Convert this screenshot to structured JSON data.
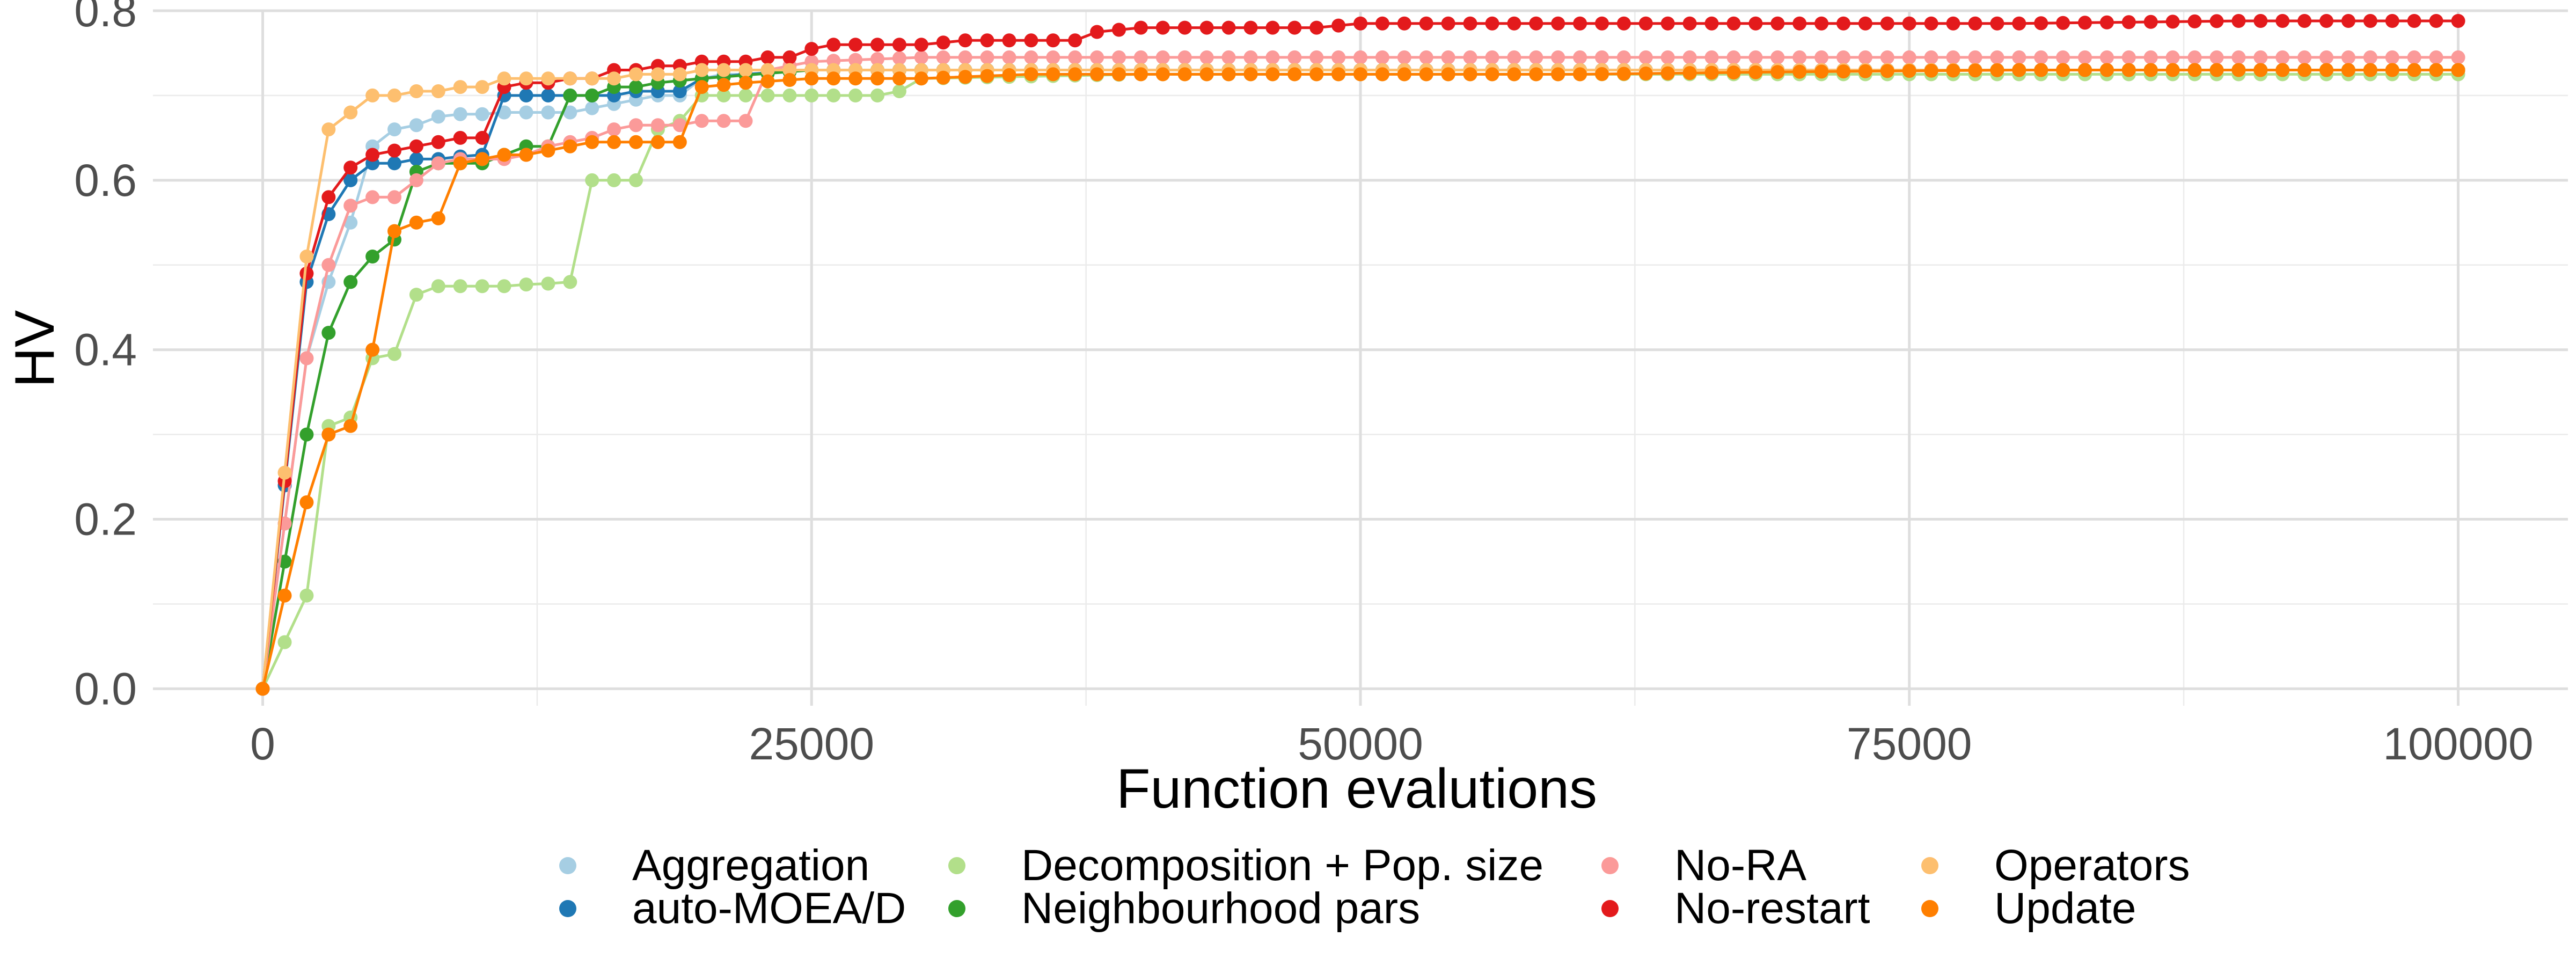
{
  "chart_data": {
    "type": "line",
    "xlabel": "Function evalutions",
    "ylabel": "HV",
    "xlim": [
      -5000,
      105000
    ],
    "ylim": [
      -0.02,
      0.8
    ],
    "x_ticks": [
      0,
      25000,
      50000,
      75000,
      100000
    ],
    "x_tick_labels": [
      "0",
      "25000",
      "50000",
      "75000",
      "100000"
    ],
    "y_ticks": [
      0.0,
      0.2,
      0.4,
      0.6,
      0.8
    ],
    "y_tick_labels": [
      "0.0",
      "0.2",
      "0.4",
      "0.6",
      "0.8"
    ],
    "grid": true,
    "legend_position": "bottom",
    "series": [
      {
        "name": "Aggregation",
        "color": "#a6cee3",
        "points": [
          [
            0,
            0
          ],
          [
            2000,
            0.39
          ],
          [
            3000,
            0.48
          ],
          [
            4000,
            0.55
          ],
          [
            5000,
            0.64
          ],
          [
            6000,
            0.66
          ],
          [
            7000,
            0.665
          ],
          [
            8000,
            0.675
          ],
          [
            9000,
            0.678
          ],
          [
            10000,
            0.678
          ],
          [
            11000,
            0.68
          ],
          [
            12000,
            0.68
          ],
          [
            13000,
            0.68
          ],
          [
            14000,
            0.68
          ],
          [
            15000,
            0.685
          ],
          [
            16000,
            0.69
          ],
          [
            17000,
            0.695
          ],
          [
            18000,
            0.7
          ],
          [
            19000,
            0.7
          ],
          [
            20000,
            0.72
          ],
          [
            21000,
            0.725
          ],
          [
            22000,
            0.725
          ],
          [
            25000,
            0.73
          ],
          [
            30000,
            0.73
          ],
          [
            40000,
            0.73
          ],
          [
            50000,
            0.73
          ],
          [
            60000,
            0.73
          ],
          [
            70000,
            0.73
          ],
          [
            80000,
            0.73
          ],
          [
            90000,
            0.73
          ],
          [
            100000,
            0.73
          ]
        ]
      },
      {
        "name": "auto-MOEA/D",
        "color": "#1f78b4",
        "points": [
          [
            0,
            0
          ],
          [
            2000,
            0.48
          ],
          [
            3000,
            0.56
          ],
          [
            4000,
            0.6
          ],
          [
            5000,
            0.62
          ],
          [
            6000,
            0.62
          ],
          [
            7000,
            0.625
          ],
          [
            8000,
            0.625
          ],
          [
            9000,
            0.628
          ],
          [
            10000,
            0.63
          ],
          [
            11000,
            0.7
          ],
          [
            12000,
            0.7
          ],
          [
            13000,
            0.7
          ],
          [
            14000,
            0.7
          ],
          [
            15000,
            0.7
          ],
          [
            16000,
            0.7
          ],
          [
            17000,
            0.705
          ],
          [
            18000,
            0.705
          ],
          [
            19000,
            0.705
          ],
          [
            20000,
            0.72
          ],
          [
            22000,
            0.725
          ],
          [
            25000,
            0.73
          ],
          [
            30000,
            0.73
          ],
          [
            40000,
            0.73
          ],
          [
            50000,
            0.73
          ],
          [
            60000,
            0.73
          ],
          [
            70000,
            0.73
          ],
          [
            80000,
            0.73
          ],
          [
            90000,
            0.73
          ],
          [
            100000,
            0.73
          ]
        ]
      },
      {
        "name": "Decomposition + Pop. size",
        "color": "#b2df8a",
        "points": [
          [
            0,
            0
          ],
          [
            2000,
            0.11
          ],
          [
            3000,
            0.31
          ],
          [
            4000,
            0.32
          ],
          [
            5000,
            0.39
          ],
          [
            6000,
            0.395
          ],
          [
            7000,
            0.465
          ],
          [
            8000,
            0.475
          ],
          [
            9000,
            0.475
          ],
          [
            10000,
            0.475
          ],
          [
            11000,
            0.475
          ],
          [
            12000,
            0.477
          ],
          [
            13000,
            0.478
          ],
          [
            14000,
            0.48
          ],
          [
            15000,
            0.6
          ],
          [
            16000,
            0.6
          ],
          [
            17000,
            0.6
          ],
          [
            18000,
            0.66
          ],
          [
            19000,
            0.67
          ],
          [
            20000,
            0.7
          ],
          [
            22000,
            0.7
          ],
          [
            24000,
            0.7
          ],
          [
            26000,
            0.7
          ],
          [
            28000,
            0.7
          ],
          [
            29000,
            0.705
          ],
          [
            30000,
            0.72
          ],
          [
            40000,
            0.725
          ],
          [
            50000,
            0.725
          ],
          [
            60000,
            0.725
          ],
          [
            70000,
            0.725
          ],
          [
            80000,
            0.725
          ],
          [
            90000,
            0.725
          ],
          [
            100000,
            0.725
          ]
        ]
      },
      {
        "name": "Neighbourhood pars",
        "color": "#33a02c",
        "points": [
          [
            0,
            0
          ],
          [
            2000,
            0.3
          ],
          [
            3000,
            0.42
          ],
          [
            4000,
            0.48
          ],
          [
            5000,
            0.51
          ],
          [
            6000,
            0.53
          ],
          [
            7000,
            0.61
          ],
          [
            8000,
            0.62
          ],
          [
            9000,
            0.62
          ],
          [
            10000,
            0.62
          ],
          [
            11000,
            0.63
          ],
          [
            12000,
            0.64
          ],
          [
            13000,
            0.64
          ],
          [
            14000,
            0.7
          ],
          [
            15000,
            0.7
          ],
          [
            16000,
            0.71
          ],
          [
            17000,
            0.71
          ],
          [
            18000,
            0.715
          ],
          [
            20000,
            0.72
          ],
          [
            25000,
            0.73
          ],
          [
            30000,
            0.73
          ],
          [
            40000,
            0.73
          ],
          [
            50000,
            0.73
          ],
          [
            60000,
            0.73
          ],
          [
            70000,
            0.73
          ],
          [
            80000,
            0.73
          ],
          [
            90000,
            0.73
          ],
          [
            100000,
            0.73
          ]
        ]
      },
      {
        "name": "No-RA",
        "color": "#fb9a99",
        "points": [
          [
            0,
            0
          ],
          [
            2000,
            0.39
          ],
          [
            3000,
            0.5
          ],
          [
            4000,
            0.57
          ],
          [
            5000,
            0.58
          ],
          [
            6000,
            0.58
          ],
          [
            7000,
            0.6
          ],
          [
            8000,
            0.62
          ],
          [
            9000,
            0.625
          ],
          [
            10000,
            0.625
          ],
          [
            11000,
            0.625
          ],
          [
            12000,
            0.63
          ],
          [
            13000,
            0.64
          ],
          [
            14000,
            0.645
          ],
          [
            15000,
            0.65
          ],
          [
            16000,
            0.66
          ],
          [
            17000,
            0.665
          ],
          [
            18000,
            0.665
          ],
          [
            19000,
            0.665
          ],
          [
            20000,
            0.67
          ],
          [
            21000,
            0.67
          ],
          [
            22000,
            0.67
          ],
          [
            23000,
            0.73
          ],
          [
            25000,
            0.74
          ],
          [
            30000,
            0.745
          ],
          [
            35000,
            0.745
          ],
          [
            40000,
            0.745
          ],
          [
            50000,
            0.745
          ],
          [
            60000,
            0.745
          ],
          [
            70000,
            0.745
          ],
          [
            80000,
            0.745
          ],
          [
            90000,
            0.745
          ],
          [
            100000,
            0.745
          ]
        ]
      },
      {
        "name": "No-restart",
        "color": "#e31a1c",
        "points": [
          [
            0,
            0
          ],
          [
            2000,
            0.49
          ],
          [
            3000,
            0.58
          ],
          [
            4000,
            0.615
          ],
          [
            5000,
            0.63
          ],
          [
            6000,
            0.635
          ],
          [
            7000,
            0.64
          ],
          [
            8000,
            0.645
          ],
          [
            9000,
            0.65
          ],
          [
            10000,
            0.65
          ],
          [
            11000,
            0.71
          ],
          [
            12000,
            0.715
          ],
          [
            13000,
            0.715
          ],
          [
            14000,
            0.72
          ],
          [
            15000,
            0.72
          ],
          [
            16000,
            0.73
          ],
          [
            17000,
            0.73
          ],
          [
            18000,
            0.735
          ],
          [
            19000,
            0.735
          ],
          [
            20000,
            0.74
          ],
          [
            21000,
            0.74
          ],
          [
            22000,
            0.74
          ],
          [
            23000,
            0.745
          ],
          [
            24000,
            0.745
          ],
          [
            25000,
            0.755
          ],
          [
            26000,
            0.76
          ],
          [
            27000,
            0.76
          ],
          [
            28000,
            0.76
          ],
          [
            30000,
            0.76
          ],
          [
            32000,
            0.765
          ],
          [
            34000,
            0.765
          ],
          [
            36000,
            0.765
          ],
          [
            37000,
            0.765
          ],
          [
            38000,
            0.775
          ],
          [
            40000,
            0.78
          ],
          [
            45000,
            0.78
          ],
          [
            48000,
            0.78
          ],
          [
            50000,
            0.785
          ],
          [
            55000,
            0.785
          ],
          [
            60000,
            0.785
          ],
          [
            70000,
            0.785
          ],
          [
            80000,
            0.785
          ],
          [
            90000,
            0.788
          ],
          [
            100000,
            0.788
          ]
        ]
      },
      {
        "name": "Operators",
        "color": "#fdbf6f",
        "points": [
          [
            0,
            0
          ],
          [
            2000,
            0.51
          ],
          [
            3000,
            0.66
          ],
          [
            4000,
            0.68
          ],
          [
            5000,
            0.7
          ],
          [
            6000,
            0.7
          ],
          [
            7000,
            0.705
          ],
          [
            8000,
            0.705
          ],
          [
            9000,
            0.71
          ],
          [
            10000,
            0.71
          ],
          [
            11000,
            0.72
          ],
          [
            12000,
            0.72
          ],
          [
            13000,
            0.72
          ],
          [
            14000,
            0.72
          ],
          [
            15000,
            0.72
          ],
          [
            16000,
            0.72
          ],
          [
            17000,
            0.725
          ],
          [
            18000,
            0.725
          ],
          [
            19000,
            0.725
          ],
          [
            20000,
            0.73
          ],
          [
            25000,
            0.73
          ],
          [
            30000,
            0.73
          ],
          [
            40000,
            0.73
          ],
          [
            50000,
            0.73
          ],
          [
            60000,
            0.73
          ],
          [
            70000,
            0.73
          ],
          [
            80000,
            0.73
          ],
          [
            90000,
            0.73
          ],
          [
            100000,
            0.73
          ]
        ]
      },
      {
        "name": "Update",
        "color": "#ff7f00",
        "points": [
          [
            0,
            0
          ],
          [
            2000,
            0.22
          ],
          [
            3000,
            0.3
          ],
          [
            4000,
            0.31
          ],
          [
            5000,
            0.4
          ],
          [
            6000,
            0.54
          ],
          [
            7000,
            0.55
          ],
          [
            8000,
            0.555
          ],
          [
            9000,
            0.62
          ],
          [
            10000,
            0.625
          ],
          [
            11000,
            0.63
          ],
          [
            12000,
            0.63
          ],
          [
            13000,
            0.635
          ],
          [
            14000,
            0.64
          ],
          [
            15000,
            0.645
          ],
          [
            16000,
            0.645
          ],
          [
            17000,
            0.645
          ],
          [
            18000,
            0.645
          ],
          [
            19000,
            0.645
          ],
          [
            20000,
            0.71
          ],
          [
            22000,
            0.715
          ],
          [
            25000,
            0.72
          ],
          [
            30000,
            0.72
          ],
          [
            35000,
            0.725
          ],
          [
            40000,
            0.725
          ],
          [
            50000,
            0.725
          ],
          [
            60000,
            0.725
          ],
          [
            70000,
            0.728
          ],
          [
            80000,
            0.73
          ],
          [
            90000,
            0.73
          ],
          [
            100000,
            0.73
          ]
        ]
      }
    ]
  }
}
